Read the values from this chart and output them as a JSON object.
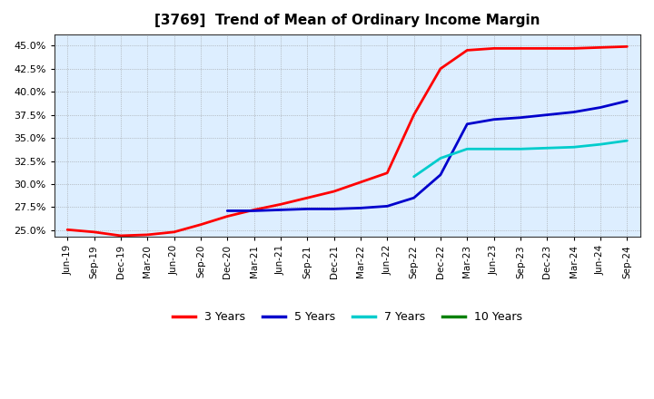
{
  "title": "[3769]  Trend of Mean of Ordinary Income Margin",
  "ylim": [
    0.243,
    0.462
  ],
  "yticks": [
    0.25,
    0.275,
    0.3,
    0.325,
    0.35,
    0.375,
    0.4,
    0.425,
    0.45
  ],
  "background_color": "#ffffff",
  "plot_bg_color": "#ddeeff",
  "grid_color": "#999999",
  "series": {
    "3 Years": {
      "color": "#ff0000",
      "points": [
        [
          0,
          0.2505
        ],
        [
          1,
          0.248
        ],
        [
          2,
          0.244
        ],
        [
          3,
          0.245
        ],
        [
          4,
          0.248
        ],
        [
          5,
          0.256
        ],
        [
          6,
          0.265
        ],
        [
          7,
          0.272
        ],
        [
          8,
          0.278
        ],
        [
          9,
          0.285
        ],
        [
          10,
          0.292
        ],
        [
          11,
          0.302
        ],
        [
          12,
          0.312
        ],
        [
          13,
          0.375
        ],
        [
          14,
          0.425
        ],
        [
          15,
          0.445
        ],
        [
          16,
          0.447
        ],
        [
          17,
          0.447
        ],
        [
          18,
          0.447
        ],
        [
          19,
          0.447
        ],
        [
          20,
          0.448
        ],
        [
          21,
          0.449
        ]
      ]
    },
    "5 Years": {
      "color": "#0000cc",
      "points": [
        [
          6,
          0.271
        ],
        [
          7,
          0.271
        ],
        [
          8,
          0.272
        ],
        [
          9,
          0.273
        ],
        [
          10,
          0.273
        ],
        [
          11,
          0.274
        ],
        [
          12,
          0.276
        ],
        [
          13,
          0.285
        ],
        [
          14,
          0.31
        ],
        [
          15,
          0.365
        ],
        [
          16,
          0.37
        ],
        [
          17,
          0.372
        ],
        [
          18,
          0.375
        ],
        [
          19,
          0.378
        ],
        [
          20,
          0.383
        ],
        [
          21,
          0.39
        ]
      ]
    },
    "7 Years": {
      "color": "#00cccc",
      "points": [
        [
          13,
          0.308
        ],
        [
          14,
          0.328
        ],
        [
          15,
          0.338
        ],
        [
          16,
          0.338
        ],
        [
          17,
          0.338
        ],
        [
          18,
          0.339
        ],
        [
          19,
          0.34
        ],
        [
          20,
          0.343
        ],
        [
          21,
          0.347
        ]
      ]
    },
    "10 Years": {
      "color": "#008000",
      "points": []
    }
  },
  "x_labels": [
    "Jun-19",
    "Sep-19",
    "Dec-19",
    "Mar-20",
    "Jun-20",
    "Sep-20",
    "Dec-20",
    "Mar-21",
    "Jun-21",
    "Sep-21",
    "Dec-21",
    "Mar-22",
    "Jun-22",
    "Sep-22",
    "Dec-22",
    "Mar-23",
    "Jun-23",
    "Sep-23",
    "Dec-23",
    "Mar-24",
    "Jun-24",
    "Sep-24"
  ],
  "legend_labels": [
    "3 Years",
    "5 Years",
    "7 Years",
    "10 Years"
  ],
  "legend_colors": [
    "#ff0000",
    "#0000cc",
    "#00cccc",
    "#008000"
  ]
}
